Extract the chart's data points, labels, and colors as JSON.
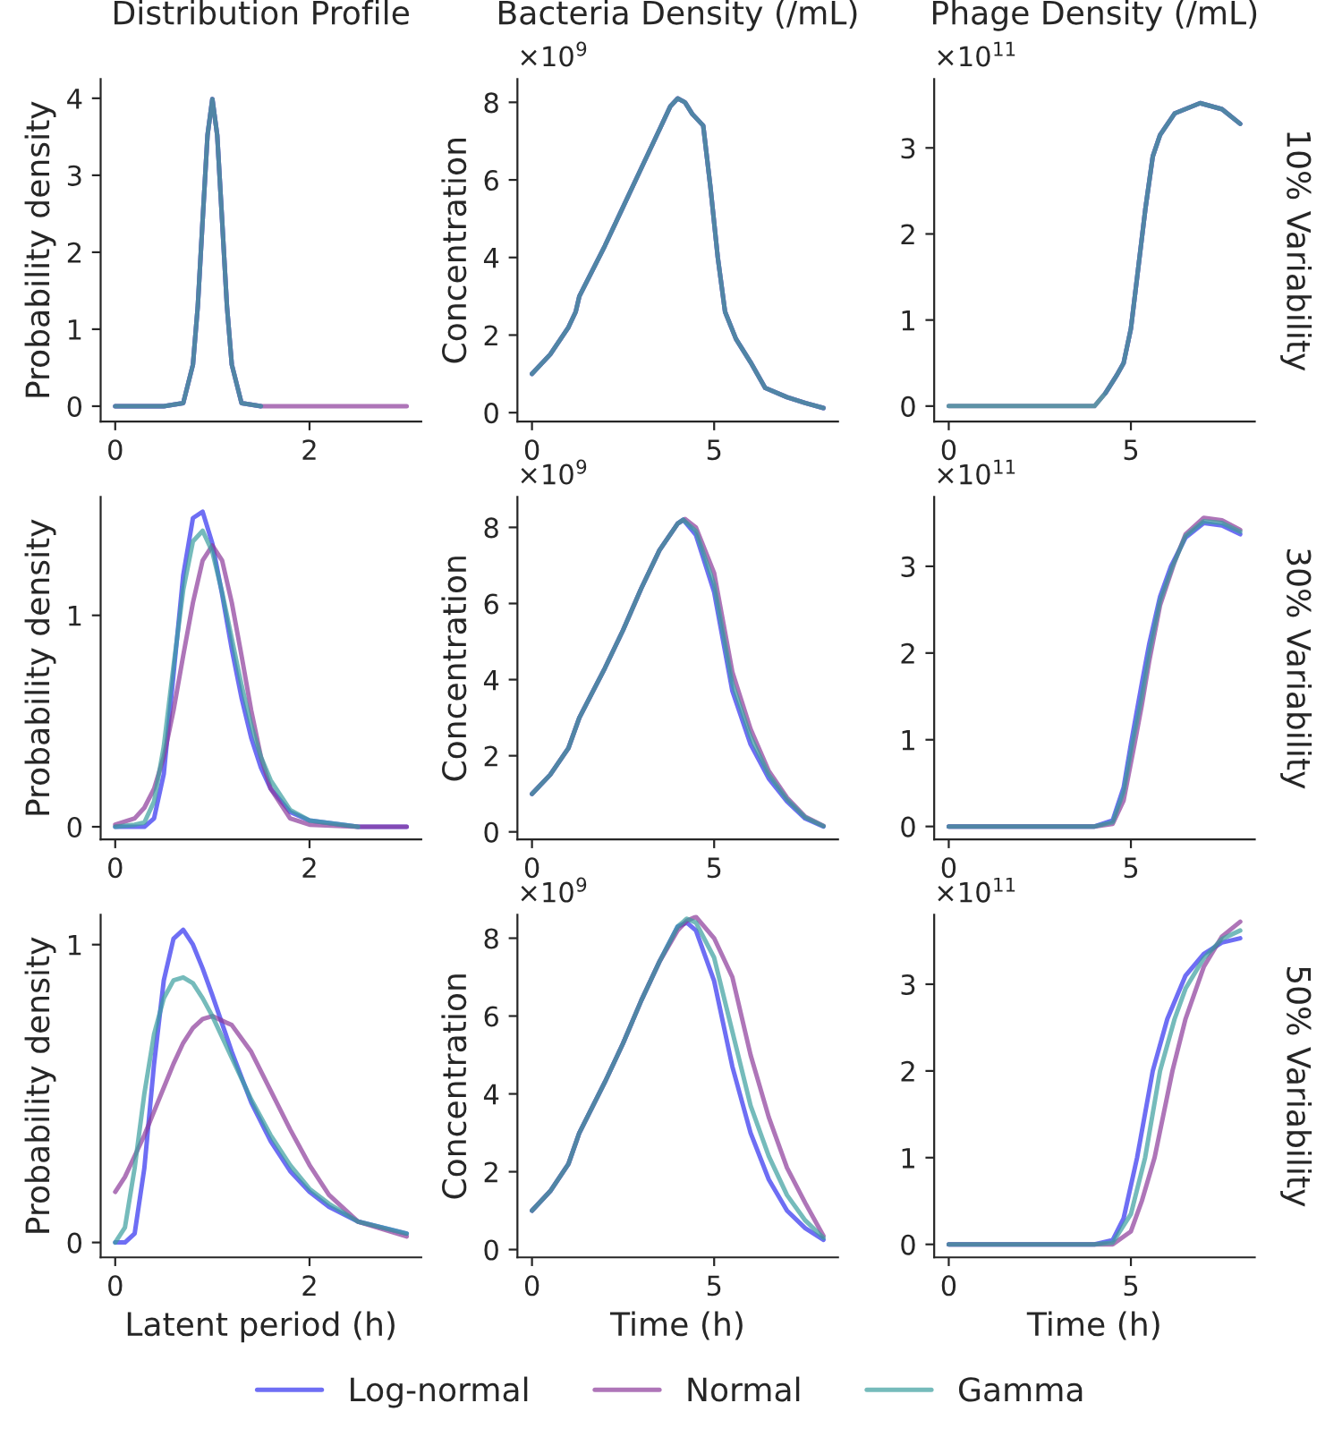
{
  "chart_data": [
    {
      "type": "line",
      "title": "Distribution Profile",
      "ylabel": "Probability density",
      "xlim": [
        -0.15,
        3.15
      ],
      "xticks": [
        0,
        2
      ],
      "ylim": [
        -0.2,
        4.25
      ],
      "yticks": [
        0,
        1,
        2,
        3,
        4
      ],
      "line_style": "solid",
      "marker": "none",
      "legend": "bottom",
      "series": [
        {
          "name": "Log-normal",
          "color": "#3030f0",
          "x": [
            0,
            0.5,
            0.7,
            0.8,
            0.85,
            0.9,
            0.95,
            1.0,
            1.05,
            1.1,
            1.15,
            1.2,
            1.3,
            1.5
          ],
          "values": [
            0,
            0,
            0.04,
            0.54,
            1.3,
            2.42,
            3.52,
            3.99,
            3.52,
            2.42,
            1.3,
            0.54,
            0.04,
            0
          ]
        },
        {
          "name": "Normal",
          "color": "#8b3a9a",
          "x": [
            0,
            0.5,
            0.7,
            0.8,
            0.85,
            0.9,
            0.95,
            1.0,
            1.05,
            1.1,
            1.15,
            1.2,
            1.3,
            1.5,
            2,
            3
          ],
          "values": [
            0,
            0,
            0.04,
            0.54,
            1.3,
            2.42,
            3.52,
            3.99,
            3.52,
            2.42,
            1.3,
            0.54,
            0.04,
            0,
            0,
            0
          ]
        },
        {
          "name": "Gamma",
          "color": "#3a9e9e",
          "x": [
            0,
            0.5,
            0.7,
            0.8,
            0.85,
            0.9,
            0.95,
            1.0,
            1.05,
            1.1,
            1.15,
            1.2,
            1.3,
            1.5
          ],
          "values": [
            0,
            0,
            0.04,
            0.54,
            1.3,
            2.42,
            3.52,
            3.99,
            3.52,
            2.42,
            1.3,
            0.54,
            0.04,
            0
          ]
        }
      ]
    },
    {
      "type": "line",
      "title": "Bacteria Density (/mL)",
      "ylabel": "Concentration",
      "annotations": [
        "×10$^{9}$"
      ],
      "xlim": [
        -0.4,
        8.4
      ],
      "xticks": [
        0,
        5
      ],
      "ylim": [
        -0.23,
        8.6
      ],
      "yticks": [
        0,
        2,
        4,
        6,
        8
      ],
      "line_style": "solid",
      "marker": "none",
      "series": [
        {
          "color": "#3030f0",
          "x": [
            0,
            0.5,
            1,
            1.2,
            1.3,
            2,
            2.5,
            3,
            3.5,
            3.8,
            4.0,
            4.2,
            4.4,
            4.7,
            4.9,
            5.1,
            5.3,
            5.6,
            6.0,
            6.4,
            7.0,
            7.5,
            8.0
          ],
          "values": [
            1.0,
            1.5,
            2.2,
            2.6,
            3.0,
            4.3,
            5.3,
            6.3,
            7.3,
            7.9,
            8.1,
            8.0,
            7.7,
            7.4,
            5.8,
            4.0,
            2.6,
            1.9,
            1.3,
            0.64,
            0.4,
            0.25,
            0.12
          ]
        },
        {
          "color": "#8b3a9a",
          "x": [
            0,
            0.5,
            1,
            1.2,
            1.3,
            2,
            2.5,
            3,
            3.5,
            3.8,
            4.0,
            4.2,
            4.4,
            4.7,
            4.9,
            5.1,
            5.3,
            5.6,
            6.0,
            6.4,
            7.0,
            7.5,
            8.0
          ],
          "values": [
            1.0,
            1.5,
            2.2,
            2.6,
            3.0,
            4.3,
            5.3,
            6.3,
            7.3,
            7.9,
            8.1,
            8.0,
            7.7,
            7.4,
            5.8,
            4.0,
            2.6,
            1.9,
            1.3,
            0.64,
            0.4,
            0.25,
            0.12
          ]
        },
        {
          "color": "#3a9e9e",
          "x": [
            0,
            0.5,
            1,
            1.2,
            1.3,
            2,
            2.5,
            3,
            3.5,
            3.8,
            4.0,
            4.2,
            4.4,
            4.7,
            4.9,
            5.1,
            5.3,
            5.6,
            6.0,
            6.4,
            7.0,
            7.5,
            8.0
          ],
          "values": [
            1.0,
            1.5,
            2.2,
            2.6,
            3.0,
            4.3,
            5.3,
            6.3,
            7.3,
            7.9,
            8.1,
            8.0,
            7.7,
            7.4,
            5.8,
            4.0,
            2.6,
            1.9,
            1.3,
            0.64,
            0.4,
            0.25,
            0.12
          ]
        }
      ]
    },
    {
      "type": "line",
      "title": "Phage Density (/mL)",
      "annotations": [
        "×10$^{11}$",
        "10% Variability"
      ],
      "xlim": [
        -0.4,
        8.4
      ],
      "xticks": [
        0,
        5
      ],
      "ylim": [
        -0.18,
        3.8
      ],
      "yticks": [
        0,
        1,
        2,
        3
      ],
      "line_style": "solid",
      "marker": "none",
      "series": [
        {
          "color": "#3030f0",
          "x": [
            4.3,
            4.6,
            4.8,
            5.0,
            5.2,
            5.4,
            5.6,
            5.8,
            6.2,
            6.9,
            7.5,
            8
          ],
          "values": [
            0.15,
            0.35,
            0.5,
            0.9,
            1.6,
            2.3,
            2.9,
            3.15,
            3.4,
            3.52,
            3.45,
            3.28
          ]
        },
        {
          "color": "#8b3a9a",
          "x": [
            0,
            4,
            4.3,
            4.6,
            4.8,
            5.0,
            5.2,
            5.4,
            5.6,
            5.8,
            6.2,
            6.9,
            7.5,
            8
          ],
          "values": [
            0,
            0,
            0.15,
            0.35,
            0.5,
            0.9,
            1.6,
            2.3,
            2.9,
            3.15,
            3.4,
            3.52,
            3.45,
            3.28
          ]
        },
        {
          "color": "#3a9e9e",
          "x": [
            0,
            4,
            4.3,
            4.6,
            4.8,
            5.0,
            5.2,
            5.4,
            5.6,
            5.8,
            6.2,
            6.9,
            7.5,
            8
          ],
          "values": [
            0,
            0,
            0.15,
            0.35,
            0.5,
            0.9,
            1.6,
            2.3,
            2.9,
            3.15,
            3.4,
            3.52,
            3.45,
            3.28
          ]
        }
      ]
    },
    {
      "type": "line",
      "ylabel": "Probability density",
      "xlim": [
        -0.15,
        3.15
      ],
      "xticks": [
        0,
        2
      ],
      "ylim": [
        -0.06,
        1.56
      ],
      "yticks": [
        0,
        1
      ],
      "line_style": "solid",
      "marker": "none",
      "series": [
        {
          "color": "#3030f0",
          "x": [
            0,
            0.2,
            0.3,
            0.4,
            0.5,
            0.6,
            0.7,
            0.8,
            0.9,
            1.0,
            1.1,
            1.2,
            1.3,
            1.4,
            1.5,
            1.6,
            1.8,
            2.0,
            2.5,
            3.0
          ],
          "values": [
            0,
            0,
            0,
            0.04,
            0.25,
            0.72,
            1.19,
            1.46,
            1.49,
            1.34,
            1.1,
            0.84,
            0.61,
            0.42,
            0.28,
            0.18,
            0.07,
            0.03,
            0,
            0
          ]
        },
        {
          "color": "#8b3a9a",
          "x": [
            0,
            0.2,
            0.3,
            0.4,
            0.5,
            0.6,
            0.7,
            0.8,
            0.9,
            1.0,
            1.1,
            1.2,
            1.3,
            1.4,
            1.5,
            1.6,
            1.8,
            2.0,
            2.5,
            3.0
          ],
          "values": [
            0.01,
            0.04,
            0.09,
            0.18,
            0.33,
            0.55,
            0.81,
            1.06,
            1.26,
            1.33,
            1.26,
            1.06,
            0.81,
            0.55,
            0.33,
            0.18,
            0.04,
            0.01,
            0,
            0
          ]
        },
        {
          "color": "#3a9e9e",
          "x": [
            0,
            0.2,
            0.3,
            0.4,
            0.5,
            0.6,
            0.7,
            0.8,
            0.9,
            1.0,
            1.1,
            1.2,
            1.3,
            1.4,
            1.5,
            1.6,
            1.8,
            2.0,
            2.5
          ],
          "values": [
            0,
            0.01,
            0.02,
            0.12,
            0.38,
            0.76,
            1.12,
            1.35,
            1.4,
            1.3,
            1.11,
            0.89,
            0.67,
            0.48,
            0.33,
            0.22,
            0.08,
            0.03,
            0
          ]
        }
      ]
    },
    {
      "type": "line",
      "ylabel": "Concentration",
      "annotations": [
        "×10$^{9}$"
      ],
      "xlim": [
        -0.4,
        8.4
      ],
      "xticks": [
        0,
        5
      ],
      "ylim": [
        -0.2,
        8.8
      ],
      "yticks": [
        0,
        2,
        4,
        6,
        8
      ],
      "line_style": "solid",
      "marker": "none",
      "series": [
        {
          "color": "#3030f0",
          "x": [
            0,
            0.5,
            1,
            1.3,
            2,
            2.5,
            3,
            3.5,
            4,
            4.15,
            4.5,
            5,
            5.5,
            6,
            6.5,
            7,
            7.5,
            8
          ],
          "values": [
            1.0,
            1.5,
            2.2,
            3.0,
            4.3,
            5.3,
            6.4,
            7.4,
            8.1,
            8.2,
            7.8,
            6.3,
            3.7,
            2.3,
            1.4,
            0.8,
            0.35,
            0.14
          ]
        },
        {
          "color": "#8b3a9a",
          "x": [
            0,
            0.5,
            1,
            1.3,
            2,
            2.5,
            3,
            3.5,
            4,
            4.2,
            4.5,
            5,
            5.5,
            6,
            6.5,
            7,
            7.5,
            8
          ],
          "values": [
            1.0,
            1.5,
            2.2,
            3.0,
            4.3,
            5.3,
            6.4,
            7.4,
            8.1,
            8.22,
            8.0,
            6.8,
            4.2,
            2.7,
            1.6,
            0.9,
            0.4,
            0.16
          ]
        },
        {
          "color": "#3a9e9e",
          "x": [
            0,
            0.5,
            1,
            1.3,
            2,
            2.5,
            3,
            3.5,
            4,
            4.15,
            4.5,
            5,
            5.5,
            6,
            6.5,
            7,
            7.5,
            8
          ],
          "values": [
            1.0,
            1.5,
            2.2,
            3.0,
            4.3,
            5.3,
            6.4,
            7.4,
            8.1,
            8.2,
            7.9,
            6.5,
            3.9,
            2.5,
            1.5,
            0.85,
            0.38,
            0.15
          ]
        }
      ]
    },
    {
      "type": "line",
      "annotations": [
        "×10$^{11}$",
        "30% Variability"
      ],
      "xlim": [
        -0.4,
        8.4
      ],
      "xticks": [
        0,
        5
      ],
      "ylim": [
        -0.15,
        3.8
      ],
      "yticks": [
        0,
        1,
        2,
        3
      ],
      "line_style": "solid",
      "marker": "none",
      "series": [
        {
          "color": "#3030f0",
          "x": [
            0,
            4,
            4.5,
            4.8,
            5.0,
            5.3,
            5.5,
            5.8,
            6.1,
            6.5,
            7,
            7.5,
            8
          ],
          "values": [
            0,
            0,
            0.07,
            0.45,
            0.95,
            1.65,
            2.1,
            2.65,
            3.0,
            3.33,
            3.5,
            3.47,
            3.37
          ]
        },
        {
          "color": "#8b3a9a",
          "x": [
            0,
            4,
            4.5,
            4.8,
            5.1,
            5.3,
            5.5,
            5.8,
            6.2,
            6.5,
            7,
            7.5,
            8
          ],
          "values": [
            0,
            0,
            0.03,
            0.3,
            0.95,
            1.4,
            1.9,
            2.55,
            3.05,
            3.37,
            3.56,
            3.53,
            3.42
          ]
        },
        {
          "color": "#3a9e9e",
          "x": [
            0,
            4,
            4.5,
            4.8,
            5.06,
            5.3,
            5.5,
            5.8,
            6.14,
            6.5,
            7,
            7.5,
            8
          ],
          "values": [
            0,
            0,
            0.05,
            0.4,
            1.0,
            1.5,
            2.0,
            2.6,
            3.0,
            3.35,
            3.52,
            3.5,
            3.4
          ]
        }
      ]
    },
    {
      "type": "line",
      "xlabel": "Latent period (h)",
      "ylabel": "Probability density",
      "xlim": [
        -0.15,
        3.15
      ],
      "ylim": [
        -0.05,
        1.1
      ],
      "xticks": [
        0,
        2
      ],
      "yticks": [
        0,
        1
      ],
      "line_style": "solid",
      "marker": "none",
      "series": [
        {
          "color": "#3030f0",
          "x": [
            0,
            0.1,
            0.2,
            0.3,
            0.4,
            0.5,
            0.6,
            0.7,
            0.8,
            0.9,
            1.0,
            1.2,
            1.4,
            1.6,
            1.8,
            2.0,
            2.2,
            2.5,
            3.0
          ],
          "values": [
            0,
            0,
            0.03,
            0.25,
            0.6,
            0.88,
            1.02,
            1.05,
            1.0,
            0.92,
            0.83,
            0.64,
            0.47,
            0.34,
            0.24,
            0.17,
            0.12,
            0.07,
            0.03
          ]
        },
        {
          "color": "#8b3a9a",
          "x": [
            0,
            0.1,
            0.2,
            0.3,
            0.4,
            0.5,
            0.6,
            0.7,
            0.8,
            0.9,
            1.0,
            1.2,
            1.4,
            1.6,
            1.8,
            2.0,
            2.2,
            2.5,
            3.0
          ],
          "values": [
            0.17,
            0.22,
            0.29,
            0.36,
            0.44,
            0.52,
            0.6,
            0.67,
            0.72,
            0.75,
            0.76,
            0.73,
            0.64,
            0.51,
            0.38,
            0.26,
            0.16,
            0.07,
            0.02
          ]
        },
        {
          "color": "#3a9e9e",
          "x": [
            0,
            0.1,
            0.2,
            0.3,
            0.4,
            0.5,
            0.6,
            0.7,
            0.8,
            0.9,
            1.0,
            1.2,
            1.4,
            1.6,
            1.8,
            2.0,
            2.2,
            2.5,
            3.0
          ],
          "values": [
            0,
            0.05,
            0.25,
            0.5,
            0.7,
            0.82,
            0.88,
            0.89,
            0.87,
            0.82,
            0.76,
            0.62,
            0.48,
            0.36,
            0.26,
            0.18,
            0.13,
            0.07,
            0.03
          ]
        }
      ]
    },
    {
      "type": "line",
      "xlabel": "Time (h)",
      "ylabel": "Concentration",
      "annotations": [
        "×10$^{9}$"
      ],
      "xlim": [
        -0.4,
        8.4
      ],
      "ylim": [
        -0.2,
        8.6
      ],
      "xticks": [
        0,
        5
      ],
      "yticks": [
        0,
        2,
        4,
        6,
        8
      ],
      "line_style": "solid",
      "marker": "none",
      "series": [
        {
          "color": "#3030f0",
          "x": [
            0,
            0.5,
            1,
            1.3,
            2,
            2.5,
            3,
            3.5,
            4,
            4.25,
            4.5,
            5,
            5.5,
            6,
            6.5,
            7,
            7.5,
            8
          ],
          "values": [
            1.0,
            1.5,
            2.2,
            3.0,
            4.3,
            5.3,
            6.4,
            7.4,
            8.3,
            8.4,
            8.2,
            6.9,
            4.7,
            3.0,
            1.8,
            1.0,
            0.55,
            0.25
          ]
        },
        {
          "color": "#8b3a9a",
          "x": [
            0,
            0.5,
            1,
            1.3,
            2,
            2.5,
            3,
            3.5,
            4,
            4.25,
            4.5,
            5,
            5.5,
            6,
            6.5,
            7,
            7.5,
            8
          ],
          "values": [
            1.0,
            1.5,
            2.2,
            3.0,
            4.3,
            5.3,
            6.4,
            7.4,
            8.2,
            8.45,
            8.55,
            8.0,
            7.0,
            5.0,
            3.4,
            2.1,
            1.2,
            0.35
          ]
        },
        {
          "color": "#3a9e9e",
          "x": [
            0,
            0.5,
            1,
            1.3,
            2,
            2.5,
            3,
            3.5,
            4,
            4.25,
            4.5,
            5,
            5.5,
            6,
            6.5,
            7,
            7.5,
            8
          ],
          "values": [
            1.0,
            1.5,
            2.2,
            3.0,
            4.3,
            5.3,
            6.4,
            7.4,
            8.3,
            8.5,
            8.4,
            7.5,
            5.6,
            3.7,
            2.4,
            1.4,
            0.75,
            0.3
          ]
        }
      ]
    },
    {
      "type": "line",
      "xlabel": "Time (h)",
      "annotations": [
        "×10$^{11}$",
        "50% Variability"
      ],
      "xlim": [
        -0.4,
        8.4
      ],
      "ylim": [
        -0.15,
        3.8
      ],
      "xticks": [
        0,
        5
      ],
      "yticks": [
        0,
        1,
        2,
        3
      ],
      "line_style": "solid",
      "marker": "none",
      "series": [
        {
          "color": "#3030f0",
          "x": [
            0,
            4,
            4.5,
            4.8,
            5.17,
            5.6,
            6,
            6.5,
            7,
            7.5,
            8
          ],
          "values": [
            0,
            0,
            0.05,
            0.3,
            1.0,
            2.0,
            2.6,
            3.1,
            3.35,
            3.48,
            3.53
          ]
        },
        {
          "color": "#8b3a9a",
          "x": [
            0,
            4,
            4.5,
            5,
            5.3,
            5.65,
            6.14,
            6.5,
            7,
            7.5,
            8
          ],
          "values": [
            0,
            0,
            0,
            0.15,
            0.5,
            1.0,
            2.0,
            2.6,
            3.2,
            3.55,
            3.72
          ]
        },
        {
          "color": "#3a9e9e",
          "x": [
            0,
            4,
            4.5,
            5,
            5.39,
            5.8,
            6.2,
            6.5,
            7,
            7.5,
            8
          ],
          "values": [
            0,
            0,
            0.02,
            0.35,
            1.0,
            2.0,
            2.6,
            2.95,
            3.3,
            3.52,
            3.62
          ]
        }
      ]
    }
  ]
}
